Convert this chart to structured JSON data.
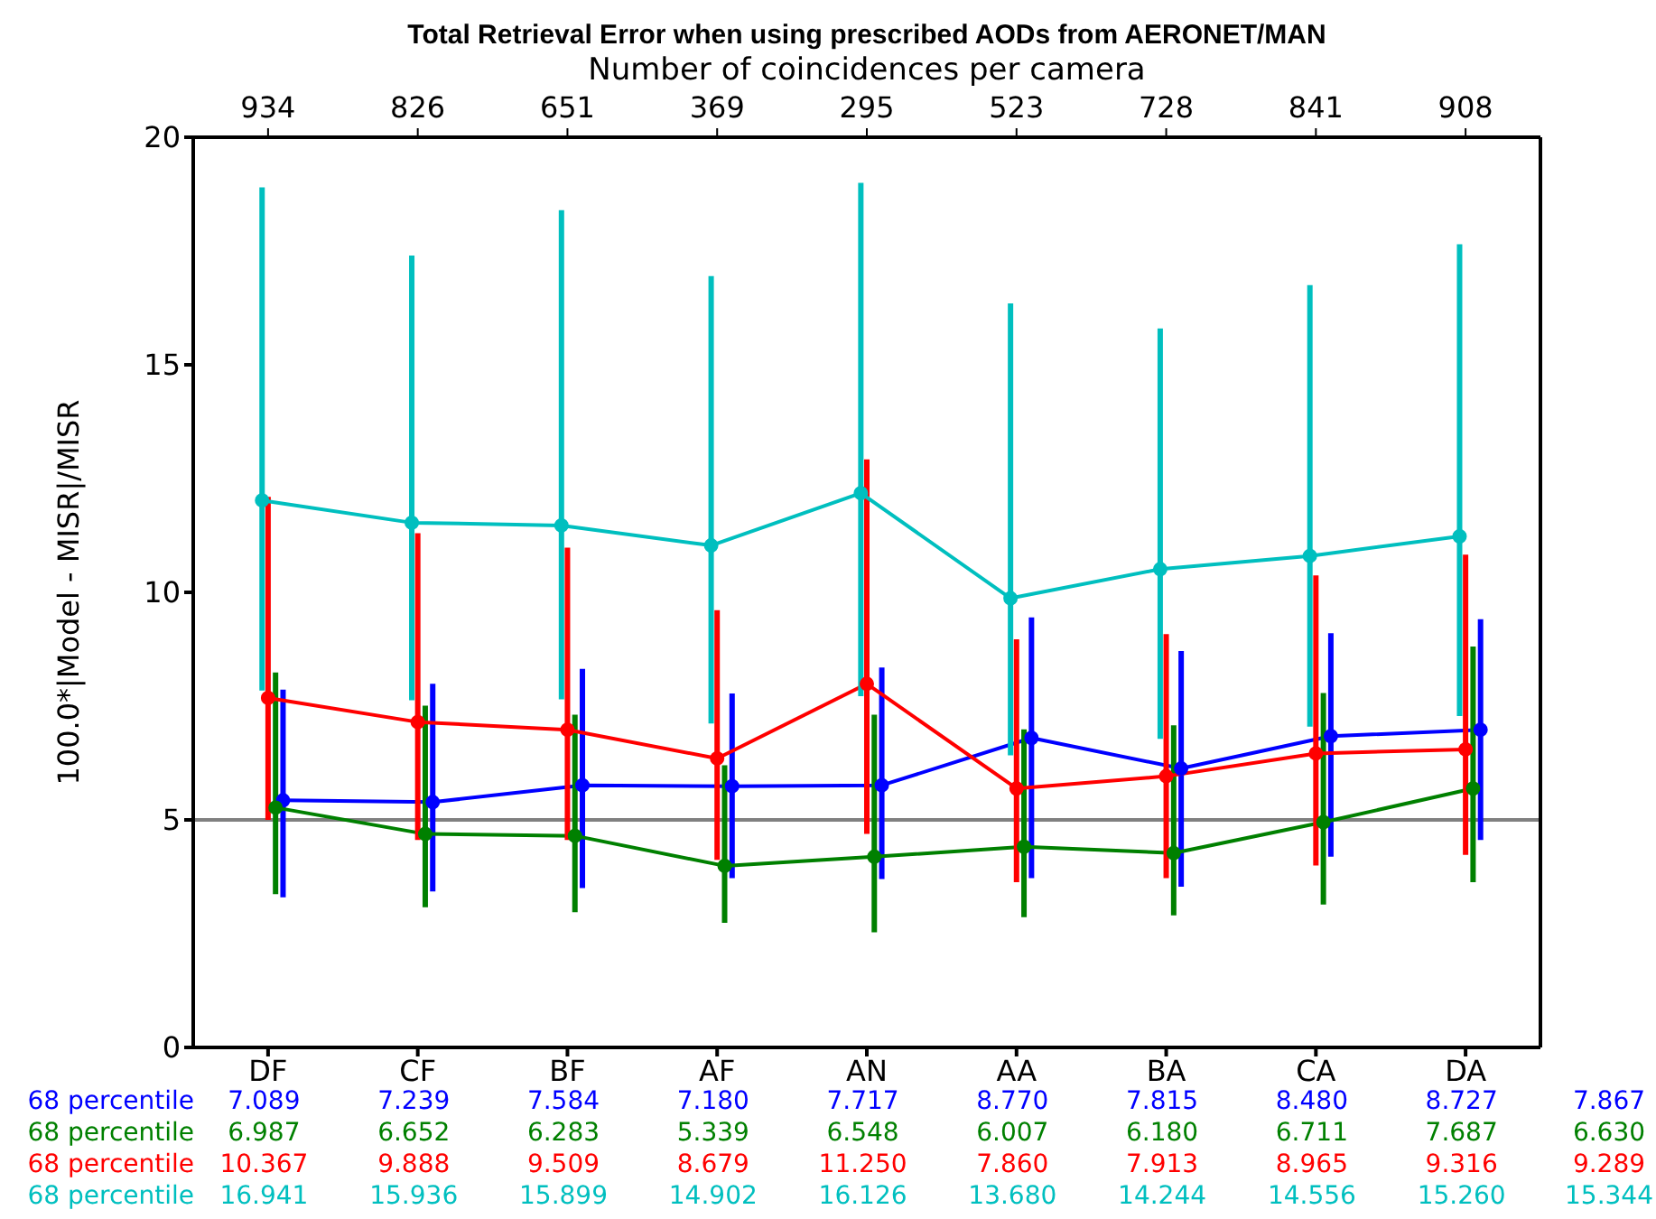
{
  "chart_data": {
    "type": "line",
    "title": "Total Retrieval Error when using prescribed AODs from AERONET/MAN",
    "x2label": "Number of coincidences per camera",
    "ylabel": "100.0*|Model - MISR|/MISR",
    "categories": [
      "DF",
      "CF",
      "BF",
      "AF",
      "AN",
      "AA",
      "BA",
      "CA",
      "DA"
    ],
    "ylim": [
      0,
      20
    ],
    "yticks": [
      0,
      5,
      10,
      15,
      20
    ],
    "marker": "circle",
    "ref_lines": [
      {
        "axis": "y",
        "value": 5,
        "color": "#808080"
      }
    ],
    "series": [
      {
        "color": "#0000ff",
        "values": [
          5.43,
          5.39,
          5.76,
          5.74,
          5.76,
          6.8,
          6.13,
          6.84,
          6.98
        ],
        "errors": [
          [
            3.3,
            7.86
          ],
          [
            3.43,
            7.99
          ],
          [
            3.5,
            8.32
          ],
          [
            3.72,
            7.78
          ],
          [
            3.7,
            8.35
          ],
          [
            3.72,
            9.45
          ],
          [
            3.53,
            8.71
          ],
          [
            4.19,
            9.1
          ],
          [
            4.56,
            9.41
          ]
        ]
      },
      {
        "color": "#008000",
        "values": [
          5.27,
          4.69,
          4.65,
          3.99,
          4.19,
          4.41,
          4.27,
          4.95,
          5.69
        ],
        "errors": [
          [
            3.37,
            8.24
          ],
          [
            3.08,
            7.51
          ],
          [
            2.97,
            7.31
          ],
          [
            2.74,
            6.2
          ],
          [
            2.53,
            7.31
          ],
          [
            2.86,
            6.99
          ],
          [
            2.9,
            7.08
          ],
          [
            3.14,
            7.79
          ],
          [
            3.63,
            8.81
          ]
        ]
      },
      {
        "color": "#ff0000",
        "values": [
          7.68,
          7.15,
          6.98,
          6.35,
          7.99,
          5.69,
          5.96,
          6.46,
          6.55
        ],
        "errors": [
          [
            5.0,
            12.1
          ],
          [
            4.56,
            11.3
          ],
          [
            4.56,
            10.98
          ],
          [
            4.12,
            9.61
          ],
          [
            4.69,
            12.92
          ],
          [
            3.63,
            8.97
          ],
          [
            3.72,
            9.08
          ],
          [
            4.0,
            10.37
          ],
          [
            4.23,
            10.83
          ]
        ]
      },
      {
        "color": "#00bfbf",
        "values": [
          12.02,
          11.53,
          11.47,
          11.03,
          12.18,
          9.87,
          10.51,
          10.8,
          11.23
        ],
        "errors": [
          [
            7.84,
            18.9
          ],
          [
            7.63,
            17.4
          ],
          [
            7.65,
            18.4
          ],
          [
            7.12,
            16.95
          ],
          [
            7.72,
            19.0
          ],
          [
            6.42,
            16.35
          ],
          [
            6.78,
            15.8
          ],
          [
            7.05,
            16.75
          ],
          [
            7.28,
            17.65
          ]
        ]
      }
    ],
    "annotations": [
      "934",
      "826",
      "651",
      "369",
      "295",
      "523",
      "728",
      "841",
      "908",
      "68 percentile 7.089 7.239 7.584 7.180 7.717 8.770 7.815 8.480 8.727 7.867",
      "68 percentile 6.987 6.652 6.283 5.339 6.548 6.007 6.180 6.711 7.687 6.630",
      "68 percentile 10.367 9.888 9.509 8.679 11.250 7.860 7.913 8.965 9.316 9.289",
      "68 percentile 16.941 15.936 15.899 14.902 16.126 13.680 14.244 14.556 15.260 15.344"
    ]
  }
}
